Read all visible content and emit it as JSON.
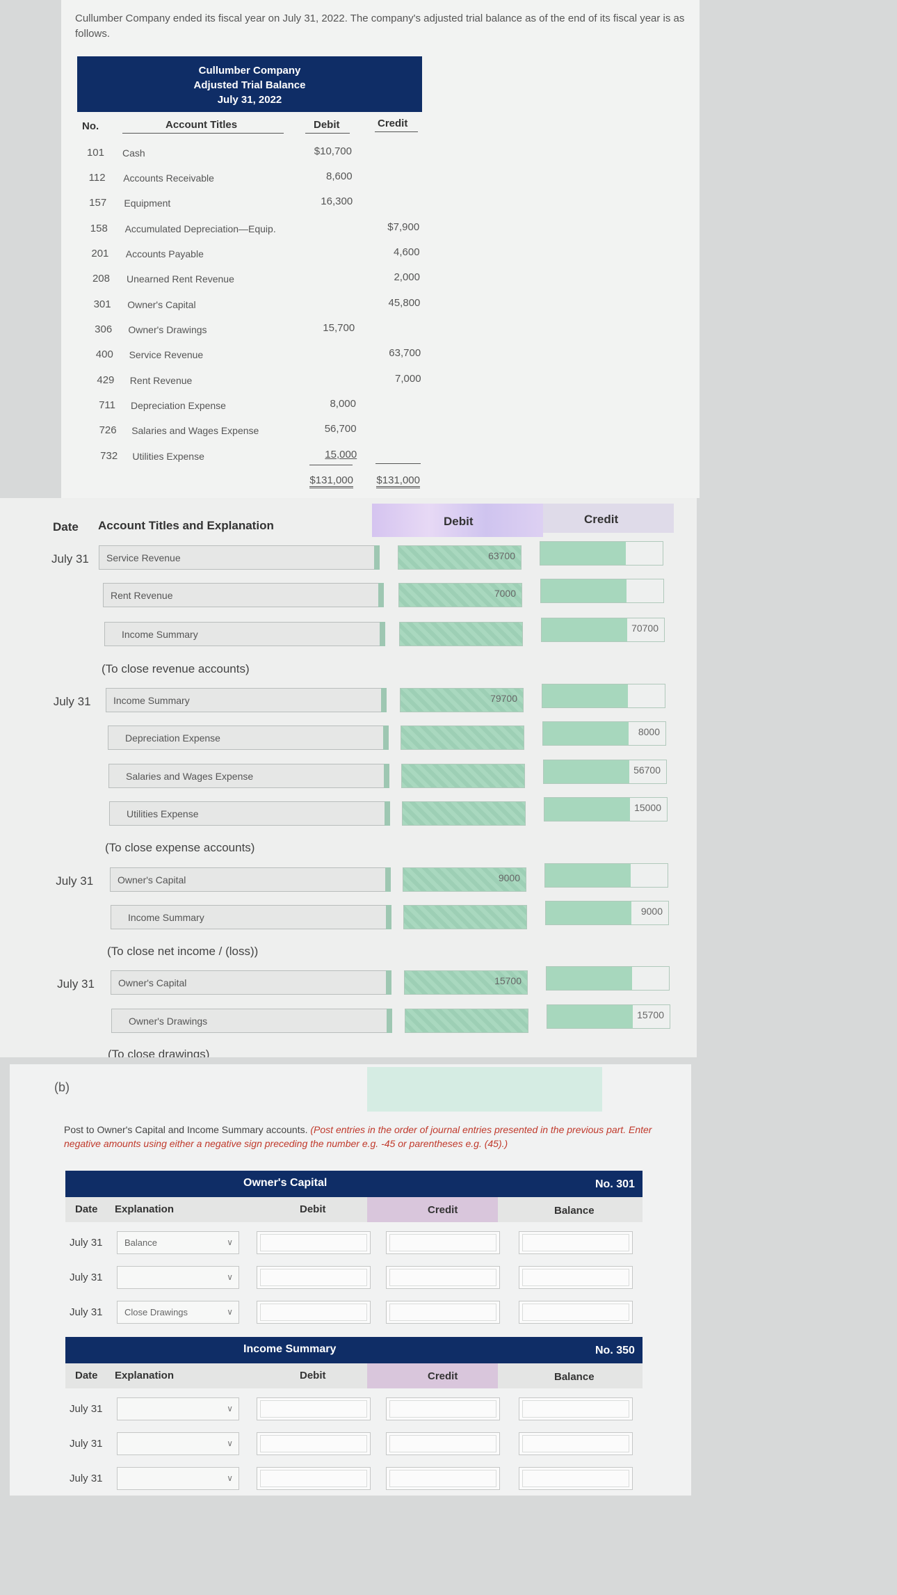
{
  "intro": "Cullumber Company ended its fiscal year on July 31, 2022. The company's adjusted trial balance as of the end of its fiscal year is as follows.",
  "trial_balance": {
    "header": [
      "Cullumber Company",
      "Adjusted Trial Balance",
      "July 31, 2022"
    ],
    "col_no": "No.",
    "col_titles": "Account Titles",
    "col_debit": "Debit",
    "col_credit": "Credit",
    "rows": [
      {
        "no": "101",
        "account": "Cash",
        "debit": "$10,700",
        "credit": ""
      },
      {
        "no": "112",
        "account": "Accounts Receivable",
        "debit": "8,600",
        "credit": ""
      },
      {
        "no": "157",
        "account": "Equipment",
        "debit": "16,300",
        "credit": ""
      },
      {
        "no": "158",
        "account": "Accumulated Depreciation—Equip.",
        "debit": "",
        "credit": "$7,900"
      },
      {
        "no": "201",
        "account": "Accounts Payable",
        "debit": "",
        "credit": "4,600"
      },
      {
        "no": "208",
        "account": "Unearned Rent Revenue",
        "debit": "",
        "credit": "2,000"
      },
      {
        "no": "301",
        "account": "Owner's Capital",
        "debit": "",
        "credit": "45,800"
      },
      {
        "no": "306",
        "account": "Owner's Drawings",
        "debit": "15,700",
        "credit": ""
      },
      {
        "no": "400",
        "account": "Service Revenue",
        "debit": "",
        "credit": "63,700"
      },
      {
        "no": "429",
        "account": "Rent Revenue",
        "debit": "",
        "credit": "7,000"
      },
      {
        "no": "711",
        "account": "Depreciation Expense",
        "debit": "8,000",
        "credit": ""
      },
      {
        "no": "726",
        "account": "Salaries and Wages Expense",
        "debit": "56,700",
        "credit": ""
      },
      {
        "no": "732",
        "account": "Utilities Expense",
        "debit": "15,000",
        "credit": ""
      }
    ],
    "total_debit": "$131,000",
    "total_credit": "$131,000"
  },
  "journal": {
    "h_date": "Date",
    "h_account": "Account Titles and Explanation",
    "h_debit": "Debit",
    "h_credit": "Credit",
    "lines": [
      {
        "date": "July 31",
        "account": "Service Revenue",
        "debit": "63700",
        "credit": ""
      },
      {
        "date": "",
        "account": "Rent Revenue",
        "debit": "7000",
        "credit": ""
      },
      {
        "date": "",
        "account": "Income Summary",
        "debit": "",
        "credit": "70700"
      },
      {
        "date": "July 31",
        "account": "Income Summary",
        "debit": "79700",
        "credit": ""
      },
      {
        "date": "",
        "account": "Depreciation Expense",
        "debit": "",
        "credit": "8000"
      },
      {
        "date": "",
        "account": "Salaries and Wages Expense",
        "debit": "",
        "credit": "56700"
      },
      {
        "date": "",
        "account": "Utilities Expense",
        "debit": "",
        "credit": "15000"
      },
      {
        "date": "July 31",
        "account": "Owner's Capital",
        "debit": "9000",
        "credit": ""
      },
      {
        "date": "",
        "account": "Income Summary",
        "debit": "",
        "credit": "9000"
      },
      {
        "date": "July 31",
        "account": "Owner's Capital",
        "debit": "15700",
        "credit": ""
      },
      {
        "date": "",
        "account": "Owner's Drawings",
        "debit": "",
        "credit": "15700"
      }
    ],
    "notes": [
      "(To close revenue accounts)",
      "(To close expense accounts)",
      "(To close net income / (loss))",
      "(To close drawings)"
    ]
  },
  "part_b": {
    "label": "(b)",
    "instruction": "Post to Owner's Capital and Income Summary accounts.",
    "instruction_red": "(Post entries in the order of journal entries presented in the previous part. Enter negative amounts using either a negative sign preceding the number e.g. -45 or parentheses e.g. (45).)",
    "ledgers": [
      {
        "title": "Owner's Capital",
        "no": "No. 301",
        "rows": [
          {
            "date": "July 31",
            "explanation": "Balance"
          },
          {
            "date": "July 31",
            "explanation": ""
          },
          {
            "date": "July 31",
            "explanation": "Close Drawings"
          }
        ]
      },
      {
        "title": "Income Summary",
        "no": "No. 350",
        "rows": [
          {
            "date": "July 31",
            "explanation": ""
          },
          {
            "date": "July 31",
            "explanation": ""
          },
          {
            "date": "July 31",
            "explanation": ""
          }
        ]
      }
    ],
    "h_date": "Date",
    "h_explanation": "Explanation",
    "h_debit": "Debit",
    "h_credit": "Credit",
    "h_balance": "Balance"
  }
}
